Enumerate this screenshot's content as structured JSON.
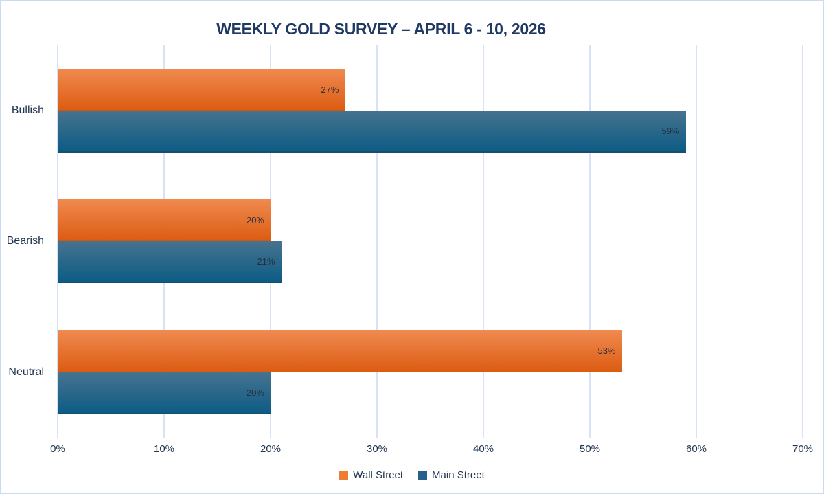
{
  "page": {
    "background": "#FFFFFF",
    "frame_border_color": "#C9DAF3"
  },
  "chart_data": {
    "type": "bar",
    "orientation": "horizontal",
    "title": "WEEKLY GOLD SURVEY – APRIL 6 - 10, 2026",
    "title_color": "#1F3864",
    "categories": [
      "Bullish",
      "Bearish",
      "Neutral"
    ],
    "series": [
      {
        "name": "Wall Street",
        "values": [
          27,
          20,
          53
        ],
        "labels": [
          "27%",
          "20%",
          "53%"
        ],
        "color": "#ED7D31",
        "gradient_top": "#F08A50",
        "gradient_bottom": "#DC5C11",
        "edge_color": "#D0570F"
      },
      {
        "name": "Main Street",
        "values": [
          59,
          21,
          20
        ],
        "labels": [
          "59%",
          "21%",
          "20%"
        ],
        "color": "#26618C",
        "gradient_top": "#46738F",
        "gradient_bottom": "#0D5C85",
        "edge_color": "#17506F"
      }
    ],
    "xlim": [
      0,
      70
    ],
    "x_ticks": [
      "0%",
      "10%",
      "20%",
      "30%",
      "40%",
      "50%",
      "60%",
      "70%"
    ],
    "gridlines": "vertical",
    "gridline_color": "#D7E2F6",
    "axis_text_color": "#20354F",
    "data_label_color": "#243040",
    "data_labels": "inside-end",
    "legend_position": "bottom"
  }
}
